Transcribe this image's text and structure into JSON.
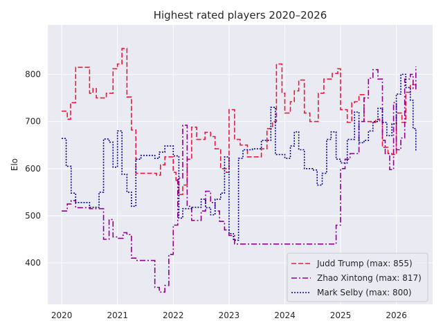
{
  "chart_data": {
    "type": "line",
    "title": "Highest rated players 2020–2026",
    "xlabel": "",
    "ylabel": "Elo",
    "xlim": [
      2019.75,
      2026.65
    ],
    "ylim": [
      312,
      905
    ],
    "x_ticks": [
      2020,
      2021,
      2022,
      2023,
      2024,
      2025,
      2026
    ],
    "y_ticks": [
      400,
      500,
      600,
      700,
      800
    ],
    "grid": true,
    "legend_position": "lower right",
    "series": [
      {
        "name": "Judd Trump (max: 855)",
        "color": "#e8193c",
        "dash": "dashed",
        "points": [
          [
            2020.0,
            722
          ],
          [
            2020.1,
            705
          ],
          [
            2020.16,
            740
          ],
          [
            2020.25,
            815
          ],
          [
            2020.5,
            760
          ],
          [
            2020.56,
            770
          ],
          [
            2020.62,
            750
          ],
          [
            2020.8,
            760
          ],
          [
            2020.92,
            812
          ],
          [
            2021.0,
            822
          ],
          [
            2021.08,
            855
          ],
          [
            2021.17,
            752
          ],
          [
            2021.25,
            682
          ],
          [
            2021.33,
            590
          ],
          [
            2021.7,
            586
          ],
          [
            2021.77,
            608
          ],
          [
            2021.85,
            625
          ],
          [
            2022.0,
            592
          ],
          [
            2022.05,
            575
          ],
          [
            2022.1,
            545
          ],
          [
            2022.17,
            565
          ],
          [
            2022.25,
            620
          ],
          [
            2022.33,
            688
          ],
          [
            2022.42,
            662
          ],
          [
            2022.57,
            677
          ],
          [
            2022.67,
            668
          ],
          [
            2022.75,
            642
          ],
          [
            2022.85,
            600
          ],
          [
            2022.95,
            592
          ],
          [
            2023.0,
            725
          ],
          [
            2023.1,
            662
          ],
          [
            2023.2,
            650
          ],
          [
            2023.33,
            625
          ],
          [
            2023.58,
            642
          ],
          [
            2023.68,
            685
          ],
          [
            2023.78,
            700
          ],
          [
            2023.85,
            822
          ],
          [
            2023.95,
            760
          ],
          [
            2024.0,
            718
          ],
          [
            2024.1,
            742
          ],
          [
            2024.17,
            765
          ],
          [
            2024.25,
            788
          ],
          [
            2024.35,
            718
          ],
          [
            2024.45,
            700
          ],
          [
            2024.6,
            760
          ],
          [
            2024.7,
            790
          ],
          [
            2024.85,
            802
          ],
          [
            2024.95,
            812
          ],
          [
            2025.0,
            725
          ],
          [
            2025.12,
            698
          ],
          [
            2025.2,
            740
          ],
          [
            2025.25,
            742
          ],
          [
            2025.33,
            757
          ],
          [
            2025.42,
            700
          ],
          [
            2025.55,
            698
          ],
          [
            2025.63,
            705
          ],
          [
            2025.7,
            700
          ],
          [
            2025.75,
            645
          ],
          [
            2025.85,
            632
          ],
          [
            2025.92,
            630
          ],
          [
            2026.0,
            718
          ],
          [
            2026.1,
            698
          ],
          [
            2026.17,
            762
          ],
          [
            2026.25,
            778
          ],
          [
            2026.35,
            768
          ]
        ]
      },
      {
        "name": "Zhao Xintong (max: 817)",
        "color": "#8b008b",
        "dash": "dashdot",
        "points": [
          [
            2020.0,
            510
          ],
          [
            2020.1,
            525
          ],
          [
            2020.17,
            532
          ],
          [
            2020.25,
            517
          ],
          [
            2020.5,
            515
          ],
          [
            2020.75,
            450
          ],
          [
            2020.85,
            492
          ],
          [
            2020.92,
            455
          ],
          [
            2021.0,
            452
          ],
          [
            2021.1,
            464
          ],
          [
            2021.17,
            460
          ],
          [
            2021.25,
            410
          ],
          [
            2021.33,
            405
          ],
          [
            2021.67,
            348
          ],
          [
            2021.75,
            338
          ],
          [
            2021.85,
            352
          ],
          [
            2021.92,
            418
          ],
          [
            2022.0,
            480
          ],
          [
            2022.08,
            580
          ],
          [
            2022.17,
            692
          ],
          [
            2022.25,
            520
          ],
          [
            2022.33,
            490
          ],
          [
            2022.5,
            510
          ],
          [
            2022.58,
            552
          ],
          [
            2022.67,
            528
          ],
          [
            2022.75,
            510
          ],
          [
            2022.83,
            488
          ],
          [
            2022.92,
            470
          ],
          [
            2023.0,
            458
          ],
          [
            2023.1,
            440
          ],
          [
            2024.0,
            440
          ],
          [
            2024.5,
            440
          ],
          [
            2024.75,
            440
          ],
          [
            2024.85,
            440
          ],
          [
            2024.92,
            480
          ],
          [
            2025.0,
            600
          ],
          [
            2025.08,
            620
          ],
          [
            2025.17,
            632
          ],
          [
            2025.33,
            700
          ],
          [
            2025.42,
            750
          ],
          [
            2025.5,
            792
          ],
          [
            2025.58,
            810
          ],
          [
            2025.67,
            790
          ],
          [
            2025.75,
            660
          ],
          [
            2025.8,
            632
          ],
          [
            2025.88,
            598
          ],
          [
            2025.95,
            740
          ],
          [
            2026.0,
            640
          ],
          [
            2026.08,
            665
          ],
          [
            2026.15,
            790
          ],
          [
            2026.25,
            800
          ],
          [
            2026.3,
            770
          ],
          [
            2026.35,
            817
          ]
        ]
      },
      {
        "name": "Mark Selby (max: 800)",
        "color": "#00008b",
        "dash": "dotted",
        "points": [
          [
            2020.0,
            664
          ],
          [
            2020.08,
            605
          ],
          [
            2020.17,
            548
          ],
          [
            2020.25,
            528
          ],
          [
            2020.5,
            518
          ],
          [
            2020.67,
            550
          ],
          [
            2020.75,
            663
          ],
          [
            2020.85,
            656
          ],
          [
            2020.92,
            603
          ],
          [
            2021.0,
            680
          ],
          [
            2021.08,
            588
          ],
          [
            2021.17,
            550
          ],
          [
            2021.25,
            520
          ],
          [
            2021.33,
            620
          ],
          [
            2021.42,
            628
          ],
          [
            2021.67,
            622
          ],
          [
            2021.75,
            635
          ],
          [
            2021.85,
            648
          ],
          [
            2022.0,
            627
          ],
          [
            2022.1,
            495
          ],
          [
            2022.17,
            515
          ],
          [
            2022.33,
            518
          ],
          [
            2022.5,
            535
          ],
          [
            2022.58,
            517
          ],
          [
            2022.67,
            502
          ],
          [
            2022.75,
            535
          ],
          [
            2022.85,
            548
          ],
          [
            2022.92,
            625
          ],
          [
            2023.0,
            462
          ],
          [
            2023.08,
            448
          ],
          [
            2023.17,
            622
          ],
          [
            2023.25,
            640
          ],
          [
            2023.42,
            642
          ],
          [
            2023.58,
            660
          ],
          [
            2023.75,
            730
          ],
          [
            2023.83,
            630
          ],
          [
            2024.0,
            622
          ],
          [
            2024.1,
            648
          ],
          [
            2024.17,
            678
          ],
          [
            2024.25,
            640
          ],
          [
            2024.35,
            600
          ],
          [
            2024.5,
            597
          ],
          [
            2024.58,
            565
          ],
          [
            2024.67,
            590
          ],
          [
            2024.75,
            662
          ],
          [
            2024.83,
            678
          ],
          [
            2024.92,
            620
          ],
          [
            2025.0,
            612
          ],
          [
            2025.12,
            662
          ],
          [
            2025.25,
            720
          ],
          [
            2025.33,
            655
          ],
          [
            2025.42,
            660
          ],
          [
            2025.5,
            680
          ],
          [
            2025.58,
            700
          ],
          [
            2025.67,
            728
          ],
          [
            2025.75,
            698
          ],
          [
            2025.83,
            670
          ],
          [
            2025.92,
            695
          ],
          [
            2026.0,
            758
          ],
          [
            2026.08,
            800
          ],
          [
            2026.17,
            772
          ],
          [
            2026.25,
            745
          ],
          [
            2026.3,
            685
          ],
          [
            2026.35,
            638
          ]
        ]
      }
    ]
  }
}
